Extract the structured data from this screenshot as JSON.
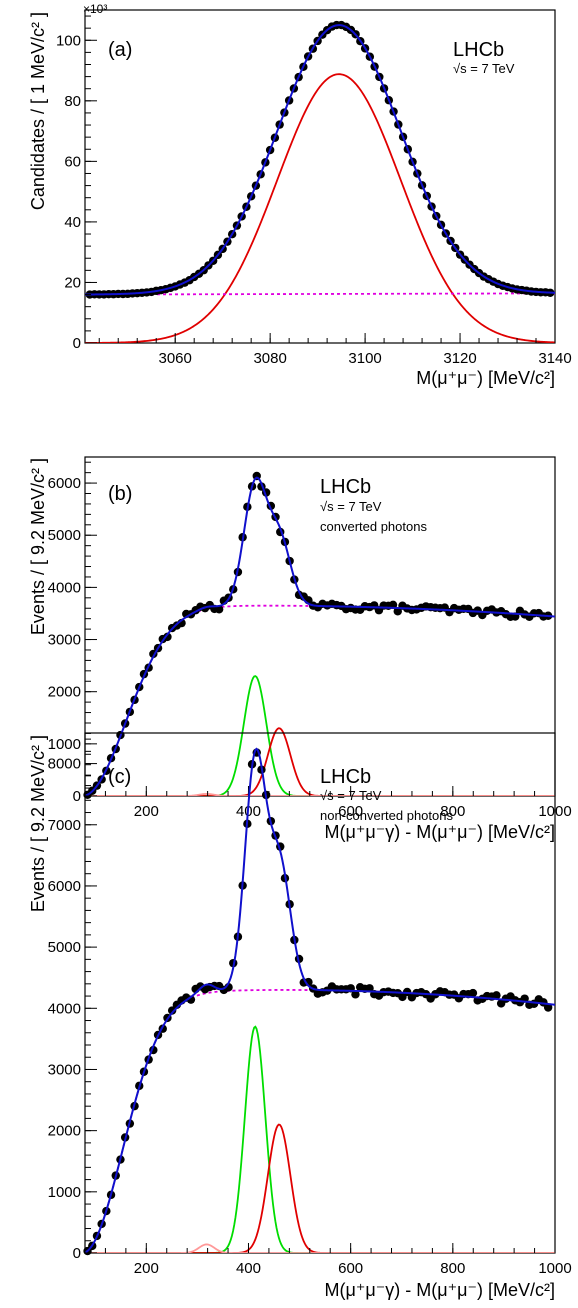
{
  "chart_data": [
    {
      "type": "scatter",
      "panel_label": "(a)",
      "experiment": "LHCb",
      "energy": "√s = 7 TeV",
      "subtitle": "",
      "xlabel": "M(μ⁺μ⁻) [MeV/c²]",
      "ylabel": "Candidates / [ 1 MeV/c² ]",
      "y_multiplier": "×10³",
      "xlim": [
        3041,
        3140
      ],
      "ylim": [
        0,
        110000
      ],
      "xticks": [
        3060,
        3080,
        3100,
        3120,
        3140
      ],
      "xtick_labels": [
        "3060",
        "3080",
        "3100",
        "3120",
        "3140"
      ],
      "yticks": [
        0,
        20000,
        40000,
        60000,
        80000,
        100000
      ],
      "ytick_labels": [
        "0",
        "20",
        "40",
        "60",
        "80",
        "100"
      ],
      "model": {
        "data_x_range": [
          3042,
          3139,
          1
        ],
        "signal": {
          "mean": 3094.5,
          "sigma": 13,
          "amp": 88800
        },
        "background": {
          "x0": 3041,
          "y0": 16000,
          "slope": 4
        },
        "peak_max": 105000
      },
      "series": [
        {
          "name": "",
          "kind": "points",
          "color": "#000000"
        },
        {
          "name": "",
          "kind": "total",
          "color": "#1010cc"
        },
        {
          "name": "",
          "kind": "signal",
          "color": "#e00000"
        },
        {
          "name": "",
          "kind": "background",
          "color": "#e000e0"
        }
      ]
    },
    {
      "type": "scatter",
      "panel_label": "(b)",
      "experiment": "LHCb",
      "energy": "√s = 7 TeV",
      "subtitle": "converted photons",
      "xlabel": "M(μ⁺μ⁻γ) - M(μ⁺μ⁻) [MeV/c²]",
      "ylabel": "Events / [ 9.2 MeV/c² ]",
      "y_multiplier": "",
      "xlim": [
        80,
        1000
      ],
      "ylim": [
        0,
        6500
      ],
      "xticks": [
        200,
        400,
        600,
        800,
        1000
      ],
      "xtick_labels": [
        "200",
        "400",
        "600",
        "800",
        "1000"
      ],
      "yticks": [
        0,
        1000,
        2000,
        3000,
        4000,
        5000,
        6000
      ],
      "ytick_labels": [
        "0",
        "1000",
        "2000",
        "3000",
        "4000",
        "5000",
        "6000"
      ],
      "model": {
        "data_x_range": [
          85,
          995,
          9.2
        ],
        "background": {
          "x0": 75,
          "k": 120,
          "A": 3650,
          "d": 0.34,
          "c": 420
        },
        "gaussians": [
          {
            "mean": 413,
            "sigma": 22,
            "amp": 2300,
            "color": "#00dd00"
          },
          {
            "mean": 460,
            "sigma": 22,
            "amp": 1300,
            "color": "#e00000"
          },
          {
            "mean": 318,
            "sigma": 15,
            "amp": 40,
            "color": "#ff9999"
          }
        ]
      },
      "series": [
        {
          "name": "",
          "kind": "points",
          "color": "#000000"
        },
        {
          "name": "",
          "kind": "total",
          "color": "#1010cc"
        },
        {
          "name": "",
          "kind": "background",
          "color": "#e000e0"
        }
      ]
    },
    {
      "type": "scatter",
      "panel_label": "(c)",
      "experiment": "LHCb",
      "energy": "√s = 7 TeV",
      "subtitle": "non-converted photons",
      "xlabel": "M(μ⁺μ⁻γ) - M(μ⁺μ⁻) [MeV/c²]",
      "ylabel": "Events / [ 9.2 MeV/c² ]",
      "y_multiplier": "",
      "xlim": [
        80,
        1000
      ],
      "ylim": [
        0,
        8500
      ],
      "xticks": [
        200,
        400,
        600,
        800,
        1000
      ],
      "xtick_labels": [
        "200",
        "400",
        "600",
        "800",
        "1000"
      ],
      "yticks": [
        0,
        1000,
        2000,
        3000,
        4000,
        5000,
        6000,
        7000,
        8000
      ],
      "ytick_labels": [
        "0",
        "1000",
        "2000",
        "3000",
        "4000",
        "5000",
        "6000",
        "7000",
        "8000"
      ],
      "model": {
        "data_x_range": [
          85,
          995,
          9.2
        ],
        "background": {
          "x0": 75,
          "k": 110,
          "A": 4300,
          "d": 0.4,
          "c": 470
        },
        "gaussians": [
          {
            "mean": 413,
            "sigma": 20,
            "amp": 3700,
            "color": "#00dd00"
          },
          {
            "mean": 460,
            "sigma": 22,
            "amp": 2100,
            "color": "#e00000"
          },
          {
            "mean": 318,
            "sigma": 15,
            "amp": 140,
            "color": "#ff9999"
          }
        ]
      },
      "series": [
        {
          "name": "",
          "kind": "points",
          "color": "#000000"
        },
        {
          "name": "",
          "kind": "total",
          "color": "#1010cc"
        },
        {
          "name": "",
          "kind": "background",
          "color": "#e000e0"
        }
      ]
    }
  ]
}
